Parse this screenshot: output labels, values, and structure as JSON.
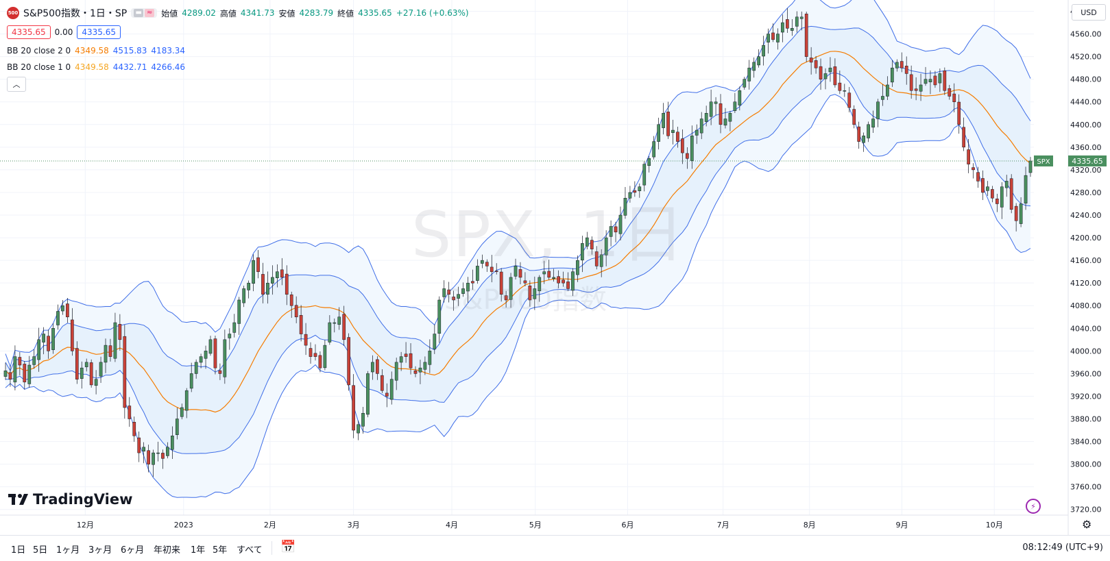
{
  "header": {
    "logo_text": "500",
    "symbol_title": "S&P500指数・1日・SP",
    "ohlc": [
      {
        "label": "始値",
        "value": "4289.02"
      },
      {
        "label": "高値",
        "value": "4341.73"
      },
      {
        "label": "安値",
        "value": "4283.79"
      },
      {
        "label": "終値",
        "value": "4335.65"
      }
    ],
    "change": "+27.16 (+0.63%)",
    "sell_price": "4335.65",
    "spread": "0.00",
    "buy_price": "4335.65"
  },
  "indicators": [
    {
      "name": "BB 20 close 2 0",
      "basis": "4349.58",
      "upper": "4515.83",
      "lower": "4183.34",
      "basis_color": "#f57c00"
    },
    {
      "name": "BB 20 close 1 0",
      "basis": "4349.58",
      "upper": "4432.71",
      "lower": "4266.46",
      "basis_color": "#f5a623"
    }
  ],
  "currency_button": "USD",
  "watermark": {
    "main": "SPX, 1日",
    "sub": "S&P500指数"
  },
  "brand": "TradingView",
  "price_tag": {
    "symbol": "SPX",
    "value": "4335.65"
  },
  "timeframes": [
    "1日",
    "5日",
    "1ヶ月",
    "3ヶ月",
    "6ヶ月",
    "年初来",
    "1年",
    "5年",
    "すべて"
  ],
  "clock": "08:12:49 (UTC+9)",
  "colors": {
    "up": "#4a8f5f",
    "down": "#c94238",
    "band": "#3f6ee8",
    "basis": "#f57c00",
    "fill": "#e8f3fd",
    "accent": "#2962ff"
  },
  "chart_data": {
    "type": "candlestick",
    "symbol": "SPX",
    "y_axis_ticks": [
      3720,
      3760,
      3800,
      3840,
      3880,
      3920,
      3960,
      4000,
      4040,
      4080,
      4120,
      4160,
      4200,
      4240,
      4280,
      4320,
      4360,
      4400,
      4440,
      4480,
      4520,
      4560,
      4600
    ],
    "x_axis_labels": [
      {
        "label": "12月",
        "date": "2022-12-01"
      },
      {
        "label": "2023",
        "date": "2023-01-03"
      },
      {
        "label": "2月",
        "date": "2023-02-01"
      },
      {
        "label": "3月",
        "date": "2023-03-01"
      },
      {
        "label": "4月",
        "date": "2023-04-03"
      },
      {
        "label": "5月",
        "date": "2023-05-01"
      },
      {
        "label": "6月",
        "date": "2023-06-01"
      },
      {
        "label": "7月",
        "date": "2023-07-03"
      },
      {
        "label": "8月",
        "date": "2023-08-01"
      },
      {
        "label": "9月",
        "date": "2023-09-01"
      },
      {
        "label": "10月",
        "date": "2023-10-02"
      }
    ],
    "close_series_approx": [
      3965,
      3950,
      3990,
      3975,
      3945,
      3975,
      3990,
      4020,
      4030,
      4000,
      4040,
      4070,
      4080,
      4060,
      4000,
      3950,
      3970,
      3980,
      3940,
      3950,
      3980,
      4010,
      3990,
      4050,
      4020,
      3900,
      3880,
      3850,
      3820,
      3830,
      3800,
      3820,
      3820,
      3810,
      3830,
      3850,
      3880,
      3900,
      3930,
      3960,
      3980,
      3990,
      4000,
      4020,
      3970,
      3960,
      4020,
      4030,
      4050,
      4090,
      4110,
      4120,
      4160,
      4140,
      4100,
      4120,
      4130,
      4140,
      4130,
      4100,
      4080,
      4060,
      4030,
      4010,
      3990,
      3990,
      3970,
      4010,
      4050,
      4050,
      4060,
      4020,
      3940,
      3860,
      3870,
      3890,
      3960,
      3980,
      3960,
      3930,
      3920,
      3950,
      3980,
      3990,
      3990,
      3970,
      3960,
      3970,
      3980,
      4000,
      4030,
      4090,
      4110,
      4100,
      4090,
      4100,
      4110,
      4120,
      4120,
      4150,
      4160,
      4150,
      4140,
      4140,
      4100,
      4090,
      4130,
      4150,
      4130,
      4120,
      4090,
      4110,
      4130,
      4140,
      4130,
      4130,
      4120,
      4120,
      4110,
      4140,
      4160,
      4190,
      4200,
      4180,
      4150,
      4170,
      4200,
      4220,
      4210,
      4240,
      4270,
      4280,
      4280,
      4290,
      4330,
      4340,
      4370,
      4400,
      4420,
      4380,
      4390,
      4370,
      4350,
      4340,
      4380,
      4390,
      4410,
      4420,
      4440,
      4440,
      4400,
      4410,
      4420,
      4440,
      4460,
      4480,
      4500,
      4510,
      4520,
      4540,
      4560,
      4550,
      4560,
      4580,
      4570,
      4570,
      4590,
      4590,
      4520,
      4510,
      4500,
      4480,
      4490,
      4500,
      4470,
      4460,
      4460,
      4430,
      4400,
      4370,
      4380,
      4400,
      4410,
      4440,
      4450,
      4470,
      4500,
      4510,
      4500,
      4490,
      4460,
      4460,
      4470,
      4480,
      4480,
      4470,
      4490,
      4460,
      4450,
      4440,
      4400,
      4360,
      4330,
      4320,
      4300,
      4280,
      4290,
      4270,
      4260,
      4290,
      4300,
      4250,
      4230,
      4260,
      4310,
      4335.65
    ],
    "bb2": {
      "basis_last": 4349.58,
      "upper_last": 4515.83,
      "lower_last": 4183.34
    },
    "bb1": {
      "basis_last": 4349.58,
      "upper_last": 4432.71,
      "lower_last": 4266.46
    },
    "ylim": [
      3710,
      4620
    ],
    "last_price": 4335.65,
    "grid": true
  }
}
